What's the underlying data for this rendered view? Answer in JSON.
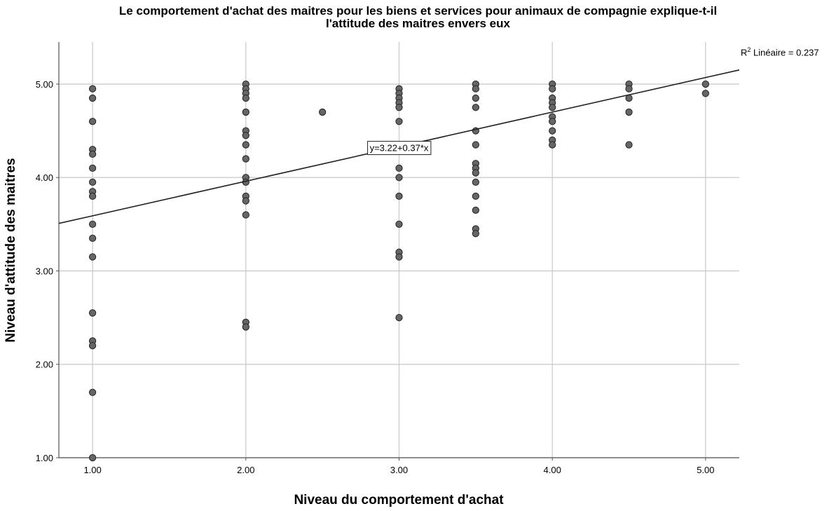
{
  "chart_data": {
    "type": "scatter",
    "title_lines": [
      "Le comportement d'achat des maitres pour les biens et services pour animaux de compagnie explique-t-il",
      "l'attitude des maitres envers eux"
    ],
    "xlabel": "Niveau du comportement d'achat",
    "ylabel": "Niveau d'attitude des maitres",
    "xlim": [
      0.78,
      5.22
    ],
    "ylim": [
      1.0,
      5.45
    ],
    "x_ticks": [
      1,
      2,
      3,
      4,
      5
    ],
    "x_tick_labels": [
      "1.00",
      "2.00",
      "3.00",
      "4.00",
      "5.00"
    ],
    "y_ticks": [
      1,
      2,
      3,
      4,
      5
    ],
    "y_tick_labels": [
      "1.00",
      "2.00",
      "3.00",
      "4.00",
      "5.00"
    ],
    "grid": true,
    "points": [
      [
        1,
        4.95
      ],
      [
        1,
        4.85
      ],
      [
        1,
        4.6
      ],
      [
        1,
        4.3
      ],
      [
        1,
        4.25
      ],
      [
        1,
        4.1
      ],
      [
        1,
        3.95
      ],
      [
        1,
        3.85
      ],
      [
        1,
        3.8
      ],
      [
        1,
        3.5
      ],
      [
        1,
        3.35
      ],
      [
        1,
        3.15
      ],
      [
        1,
        2.55
      ],
      [
        1,
        2.25
      ],
      [
        1,
        2.2
      ],
      [
        1,
        1.7
      ],
      [
        1,
        1.0
      ],
      [
        2,
        5.0
      ],
      [
        2,
        4.95
      ],
      [
        2,
        4.9
      ],
      [
        2,
        4.85
      ],
      [
        2,
        4.7
      ],
      [
        2,
        4.5
      ],
      [
        2,
        4.45
      ],
      [
        2,
        4.35
      ],
      [
        2,
        4.2
      ],
      [
        2,
        4.0
      ],
      [
        2,
        3.95
      ],
      [
        2,
        3.8
      ],
      [
        2,
        3.75
      ],
      [
        2,
        3.6
      ],
      [
        2,
        2.45
      ],
      [
        2,
        2.4
      ],
      [
        2.5,
        4.7
      ],
      [
        3,
        4.95
      ],
      [
        3,
        4.9
      ],
      [
        3,
        4.85
      ],
      [
        3,
        4.8
      ],
      [
        3,
        4.75
      ],
      [
        3,
        4.6
      ],
      [
        3,
        4.1
      ],
      [
        3,
        4.0
      ],
      [
        3,
        3.8
      ],
      [
        3,
        3.5
      ],
      [
        3,
        3.2
      ],
      [
        3,
        3.15
      ],
      [
        3,
        2.5
      ],
      [
        3.5,
        5.0
      ],
      [
        3.5,
        4.95
      ],
      [
        3.5,
        4.85
      ],
      [
        3.5,
        4.75
      ],
      [
        3.5,
        4.5
      ],
      [
        3.5,
        4.35
      ],
      [
        3.5,
        4.15
      ],
      [
        3.5,
        4.1
      ],
      [
        3.5,
        4.05
      ],
      [
        3.5,
        3.95
      ],
      [
        3.5,
        3.8
      ],
      [
        3.5,
        3.65
      ],
      [
        3.5,
        3.45
      ],
      [
        3.5,
        3.4
      ],
      [
        4,
        5.0
      ],
      [
        4,
        4.95
      ],
      [
        4,
        4.85
      ],
      [
        4,
        4.8
      ],
      [
        4,
        4.75
      ],
      [
        4,
        4.65
      ],
      [
        4,
        4.6
      ],
      [
        4,
        4.5
      ],
      [
        4,
        4.4
      ],
      [
        4,
        4.35
      ],
      [
        4.5,
        5.0
      ],
      [
        4.5,
        4.95
      ],
      [
        4.5,
        4.85
      ],
      [
        4.5,
        4.7
      ],
      [
        4.5,
        4.35
      ],
      [
        5,
        5.0
      ],
      [
        5,
        4.9
      ]
    ],
    "fit_line": {
      "intercept": 3.22,
      "slope": 0.37,
      "label": "y=3.22+0.37*x"
    },
    "r2_label": "Linéaire = 0.237",
    "r2_prefix": "R",
    "r2_superscript": "2",
    "colors": {
      "point_fill": "#666666",
      "point_stroke": "#2a2a2a",
      "grid": "#c8c8c8",
      "fit_line": "#222222",
      "axis": "#555555"
    }
  }
}
